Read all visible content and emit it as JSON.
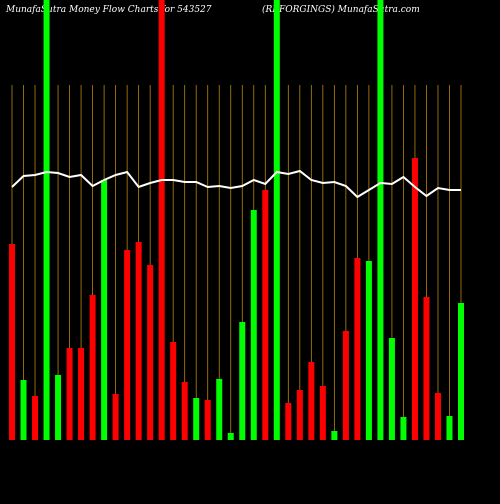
{
  "chart_data": {
    "type": "bar",
    "title": "MunafaSutra  Money Flow  Charts for 543527",
    "subtitle": "(RKFORGINGS) MunafaSutra.com",
    "values": [
      196,
      60,
      44,
      440,
      65,
      92,
      92,
      145,
      260,
      46,
      190,
      198,
      175,
      440,
      98,
      58,
      42,
      40,
      61,
      7,
      118,
      230,
      250,
      440,
      37,
      50,
      78,
      54,
      9,
      109,
      182,
      179,
      440,
      102,
      23,
      282,
      143,
      47,
      24,
      137
    ],
    "colors": [
      "#ff0000",
      "#00ff00",
      "#ff0000",
      "#00ff00",
      "#00ff00",
      "#ff0000",
      "#ff0000",
      "#ff0000",
      "#00ff00",
      "#ff0000",
      "#ff0000",
      "#ff0000",
      "#ff0000",
      "#ff0000",
      "#ff0000",
      "#ff0000",
      "#00ff00",
      "#ff0000",
      "#00ff00",
      "#00ff00",
      "#00ff00",
      "#00ff00",
      "#ff0000",
      "#00ff00",
      "#ff0000",
      "#ff0000",
      "#ff0000",
      "#ff0000",
      "#00ff00",
      "#ff0000",
      "#ff0000",
      "#00ff00",
      "#00ff00",
      "#00ff00",
      "#00ff00",
      "#ff0000",
      "#ff0000",
      "#ff0000",
      "#00ff00",
      "#00ff00"
    ],
    "line": {
      "color": "#ffffff",
      "values": [
        253,
        264,
        265,
        268,
        267,
        263,
        265,
        254,
        260,
        265,
        268,
        253,
        257,
        260,
        260,
        258,
        258,
        253,
        254,
        252,
        254,
        260,
        256,
        268,
        266,
        269,
        260,
        257,
        258,
        254,
        243,
        250,
        257,
        256,
        263,
        253,
        244,
        252,
        250,
        250
      ]
    },
    "gridline_color": "#b8860b"
  }
}
